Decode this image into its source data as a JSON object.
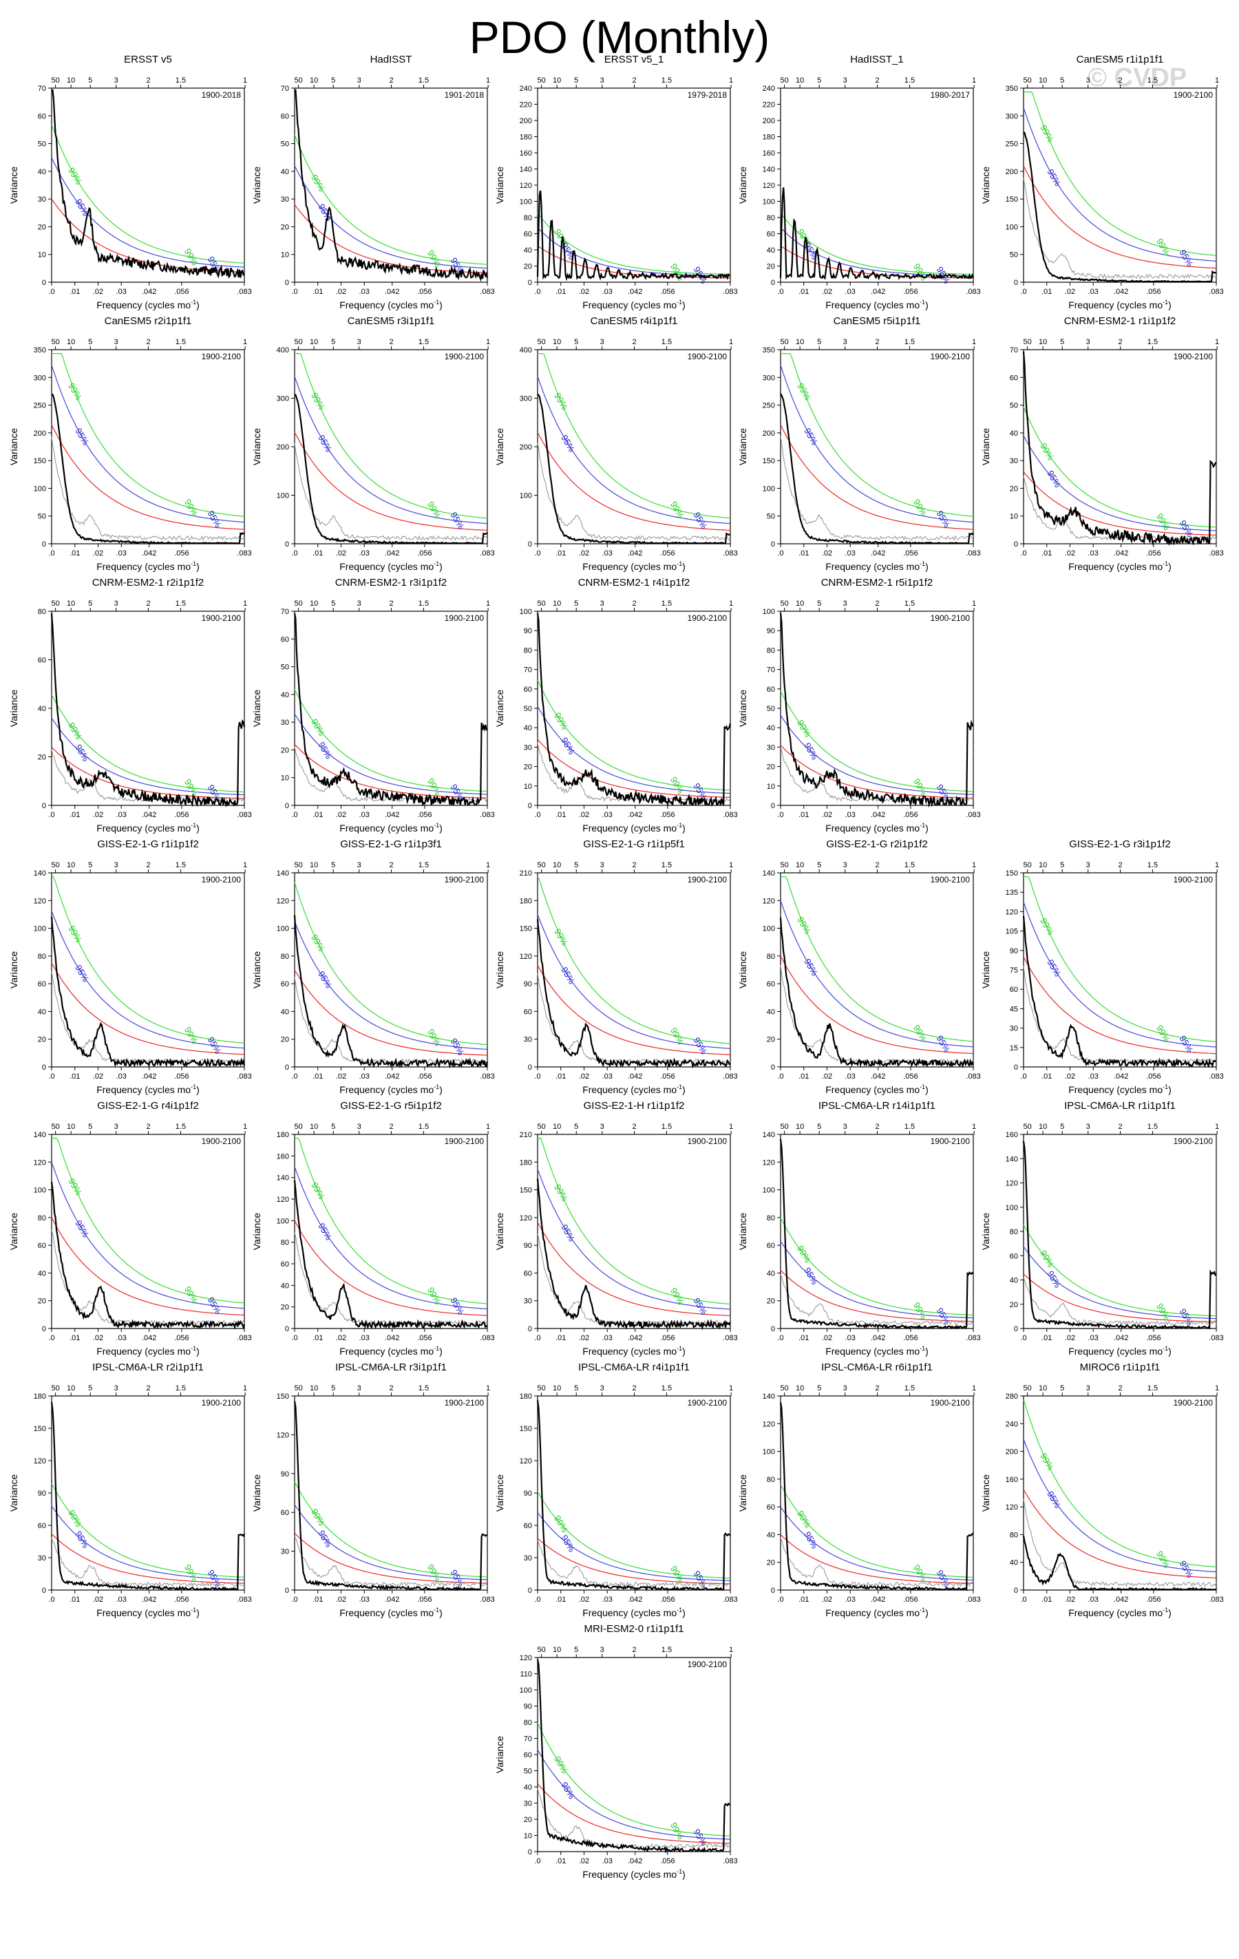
{
  "figure": {
    "title": "PDO (Monthly)",
    "watermark": "© CVDP"
  },
  "colors": {
    "spectrum": "#000000",
    "obs_reference": "#9a9a9a",
    "red_noise": "#ee2222",
    "sig95": "#4444dd",
    "sig99": "#33dd33",
    "sig95_label": "#2222cc",
    "sig99_label": "#22cc22"
  },
  "axes_common": {
    "xlabel": "Frequency (cycles mo",
    "xlabel_sup": "-1",
    "xlabel_close": ")",
    "ylabel": "Variance",
    "bottom_tick_labels": [
      ".0",
      ".01",
      ".02",
      ".03",
      ".042",
      ".056",
      ".083"
    ],
    "bottom_tick_values": [
      0,
      0.01,
      0.02,
      0.03,
      0.042,
      0.056,
      0.083
    ],
    "top_tick_labels": [
      "50",
      "10",
      "5",
      "3",
      "2",
      "1.5",
      "1"
    ],
    "top_tick_values": [
      0.001667,
      0.008333,
      0.016667,
      0.027778,
      0.041667,
      0.055556,
      0.083333
    ],
    "xlim": [
      0,
      0.083
    ],
    "sig95_label": "95%",
    "sig99_label": "99%"
  },
  "chart_data": [
    {
      "type": "line",
      "title": "ERSST v5",
      "period": "1900-2018",
      "ylim": [
        0,
        70
      ],
      "yticks": [
        0,
        10,
        20,
        30,
        40,
        50,
        60,
        70
      ],
      "red_noise_peak": 30,
      "spec": "obs1"
    },
    {
      "type": "line",
      "title": "HadISST",
      "period": "1901-2018",
      "ylim": [
        0,
        70
      ],
      "yticks": [
        0,
        10,
        20,
        30,
        40,
        50,
        60,
        70
      ],
      "red_noise_peak": 28,
      "spec": "obs2"
    },
    {
      "type": "line",
      "title": "ERSST v5_1",
      "period": "1979-2018",
      "ylim": [
        0,
        240
      ],
      "yticks": [
        0,
        20,
        40,
        60,
        80,
        100,
        120,
        140,
        160,
        180,
        200,
        220,
        240
      ],
      "red_noise_peak": 45,
      "spec": "obs3"
    },
    {
      "type": "line",
      "title": "HadISST_1",
      "period": "1980-2017",
      "ylim": [
        0,
        240
      ],
      "yticks": [
        0,
        20,
        40,
        60,
        80,
        100,
        120,
        140,
        160,
        180,
        200,
        220,
        240
      ],
      "red_noise_peak": 45,
      "spec": "obs4"
    },
    {
      "type": "line",
      "title": "CanESM5 r1i1p1f1",
      "period": "1900-2100",
      "ylim": [
        0,
        350
      ],
      "yticks": [
        0,
        50,
        100,
        150,
        200,
        250,
        300,
        350
      ],
      "red_noise_peak": 210,
      "spec": "can"
    },
    {
      "type": "line",
      "title": "CanESM5 r2i1p1f1",
      "period": "1900-2100",
      "ylim": [
        0,
        350
      ],
      "yticks": [
        0,
        50,
        100,
        150,
        200,
        250,
        300,
        350
      ],
      "red_noise_peak": 215,
      "spec": "can"
    },
    {
      "type": "line",
      "title": "CanESM5 r3i1p1f1",
      "period": "1900-2100",
      "ylim": [
        0,
        400
      ],
      "yticks": [
        0,
        100,
        200,
        300,
        400
      ],
      "red_noise_peak": 230,
      "spec": "can"
    },
    {
      "type": "line",
      "title": "CanESM5 r4i1p1f1",
      "period": "1900-2100",
      "ylim": [
        0,
        400
      ],
      "yticks": [
        0,
        100,
        200,
        300,
        400
      ],
      "red_noise_peak": 230,
      "spec": "can"
    },
    {
      "type": "line",
      "title": "CanESM5 r5i1p1f1",
      "period": "1900-2100",
      "ylim": [
        0,
        350
      ],
      "yticks": [
        0,
        50,
        100,
        150,
        200,
        250,
        300,
        350
      ],
      "red_noise_peak": 215,
      "spec": "can"
    },
    {
      "type": "line",
      "title": "CNRM-ESM2-1 r1i1p1f2",
      "period": "1900-2100",
      "ylim": [
        0,
        70
      ],
      "yticks": [
        0,
        10,
        20,
        30,
        40,
        50,
        60,
        70
      ],
      "red_noise_peak": 26,
      "spec": "cnrm"
    },
    {
      "type": "line",
      "title": "CNRM-ESM2-1 r2i1p1f2",
      "period": "1900-2100",
      "ylim": [
        0,
        80
      ],
      "yticks": [
        0,
        20,
        40,
        60,
        80
      ],
      "red_noise_peak": 24,
      "spec": "cnrm"
    },
    {
      "type": "line",
      "title": "CNRM-ESM2-1 r3i1p1f2",
      "period": "1900-2100",
      "ylim": [
        0,
        70
      ],
      "yticks": [
        0,
        10,
        20,
        30,
        40,
        50,
        60,
        70
      ],
      "red_noise_peak": 22,
      "spec": "cnrm"
    },
    {
      "type": "line",
      "title": "CNRM-ESM2-1 r4i1p1f2",
      "period": "1900-2100",
      "ylim": [
        0,
        100
      ],
      "yticks": [
        0,
        10,
        20,
        30,
        40,
        50,
        60,
        70,
        80,
        90,
        100
      ],
      "red_noise_peak": 34,
      "spec": "cnrm"
    },
    {
      "type": "line",
      "title": "CNRM-ESM2-1 r5i1p1f2",
      "period": "1900-2100",
      "ylim": [
        0,
        100
      ],
      "yticks": [
        0,
        10,
        20,
        30,
        40,
        50,
        60,
        70,
        80,
        90,
        100
      ],
      "red_noise_peak": 31,
      "spec": "cnrm"
    },
    {
      "type": "line",
      "title": "GISS-E2-1-G r1i1p1f2",
      "period": "1900-2100",
      "ylim": [
        0,
        140
      ],
      "yticks": [
        0,
        20,
        40,
        60,
        80,
        100,
        120,
        140
      ],
      "red_noise_peak": 75,
      "spec": "giss"
    },
    {
      "type": "line",
      "title": "GISS-E2-1-G r1i1p3f1",
      "period": "1900-2100",
      "ylim": [
        0,
        140
      ],
      "yticks": [
        0,
        20,
        40,
        60,
        80,
        100,
        120,
        140
      ],
      "red_noise_peak": 70,
      "spec": "giss"
    },
    {
      "type": "line",
      "title": "GISS-E2-1-G r1i1p5f1",
      "period": "1900-2100",
      "ylim": [
        0,
        210
      ],
      "yticks": [
        0,
        30,
        60,
        90,
        120,
        150,
        180,
        210
      ],
      "red_noise_peak": 110,
      "spec": "giss"
    },
    {
      "type": "line",
      "title": "GISS-E2-1-G r2i1p1f2",
      "period": "1900-2100",
      "ylim": [
        0,
        140
      ],
      "yticks": [
        0,
        20,
        40,
        60,
        80,
        100,
        120,
        140
      ],
      "red_noise_peak": 80,
      "spec": "giss"
    },
    {
      "type": "line",
      "title": "GISS-E2-1-G r3i1p1f2",
      "period": "1900-2100",
      "ylim": [
        0,
        150
      ],
      "yticks": [
        0,
        15,
        30,
        45,
        60,
        75,
        90,
        105,
        120,
        135,
        150
      ],
      "red_noise_peak": 85,
      "spec": "giss"
    },
    {
      "type": "line",
      "title": "GISS-E2-1-G r4i1p1f2",
      "period": "1900-2100",
      "ylim": [
        0,
        140
      ],
      "yticks": [
        0,
        20,
        40,
        60,
        80,
        100,
        120,
        140
      ],
      "red_noise_peak": 80,
      "spec": "giss"
    },
    {
      "type": "line",
      "title": "GISS-E2-1-G r5i1p1f2",
      "period": "1900-2100",
      "ylim": [
        0,
        180
      ],
      "yticks": [
        0,
        20,
        40,
        60,
        80,
        100,
        120,
        140,
        160,
        180
      ],
      "red_noise_peak": 100,
      "spec": "giss"
    },
    {
      "type": "line",
      "title": "GISS-E2-1-H r1i1p1f2",
      "period": "1900-2100",
      "ylim": [
        0,
        210
      ],
      "yticks": [
        0,
        30,
        60,
        90,
        120,
        150,
        180,
        210
      ],
      "red_noise_peak": 115,
      "spec": "giss"
    },
    {
      "type": "line",
      "title": "IPSL-CM6A-LR r14i1p1f1",
      "period": "1900-2100",
      "ylim": [
        0,
        140
      ],
      "yticks": [
        0,
        20,
        40,
        60,
        80,
        100,
        120,
        140
      ],
      "red_noise_peak": 42,
      "spec": "ipsl"
    },
    {
      "type": "line",
      "title": "IPSL-CM6A-LR r1i1p1f1",
      "period": "1900-2100",
      "ylim": [
        0,
        160
      ],
      "yticks": [
        0,
        20,
        40,
        60,
        80,
        100,
        120,
        140,
        160
      ],
      "red_noise_peak": 45,
      "spec": "ipsl"
    },
    {
      "type": "line",
      "title": "IPSL-CM6A-LR r2i1p1f1",
      "period": "1900-2100",
      "ylim": [
        0,
        180
      ],
      "yticks": [
        0,
        30,
        60,
        90,
        120,
        150,
        180
      ],
      "red_noise_peak": 52,
      "spec": "ipsl"
    },
    {
      "type": "line",
      "title": "IPSL-CM6A-LR r3i1p1f1",
      "period": "1900-2100",
      "ylim": [
        0,
        150
      ],
      "yticks": [
        0,
        30,
        60,
        90,
        120,
        150
      ],
      "red_noise_peak": 44,
      "spec": "ipsl"
    },
    {
      "type": "line",
      "title": "IPSL-CM6A-LR r4i1p1f1",
      "period": "1900-2100",
      "ylim": [
        0,
        180
      ],
      "yticks": [
        0,
        30,
        60,
        90,
        120,
        150,
        180
      ],
      "red_noise_peak": 48,
      "spec": "ipsl"
    },
    {
      "type": "line",
      "title": "IPSL-CM6A-LR r6i1p1f1",
      "period": "1900-2100",
      "ylim": [
        0,
        140
      ],
      "yticks": [
        0,
        20,
        40,
        60,
        80,
        100,
        120,
        140
      ],
      "red_noise_peak": 40,
      "spec": "ipsl"
    },
    {
      "type": "line",
      "title": "MIROC6 r1i1p1f1",
      "period": "1900-2100",
      "ylim": [
        0,
        280
      ],
      "yticks": [
        0,
        40,
        80,
        120,
        160,
        200,
        240,
        280
      ],
      "red_noise_peak": 145,
      "spec": "miroc"
    },
    {
      "type": "line",
      "title": "MRI-ESM2-0 r1i1p1f1",
      "period": "1900-2100",
      "ylim": [
        0,
        120
      ],
      "yticks": [
        0,
        10,
        20,
        30,
        40,
        50,
        60,
        70,
        80,
        90,
        100,
        110,
        120
      ],
      "red_noise_peak": 42,
      "spec": "mri"
    }
  ]
}
